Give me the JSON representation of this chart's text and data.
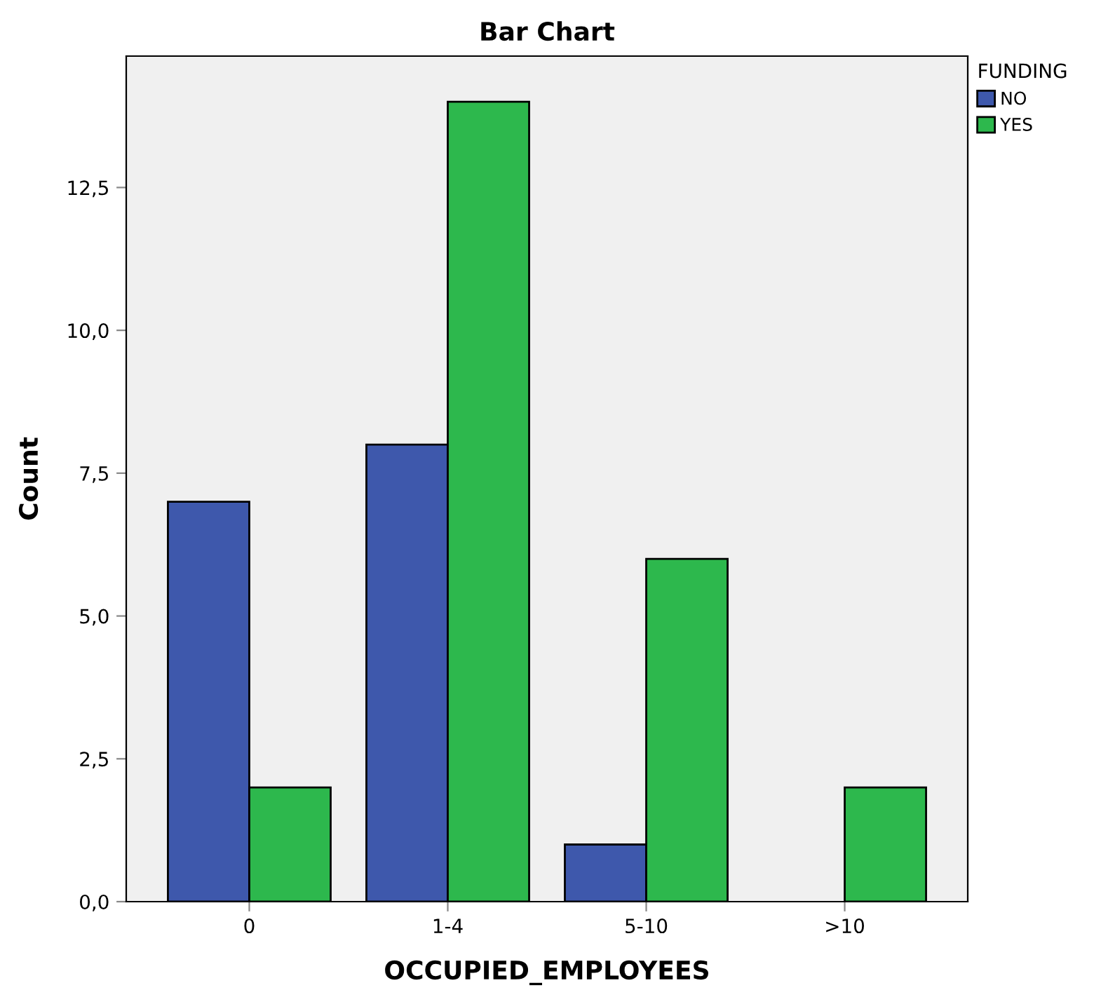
{
  "chart_data": {
    "type": "bar",
    "title": "Bar Chart",
    "xlabel": "OCCUPIED_EMPLOYEES",
    "ylabel": "Count",
    "legend_title": "FUNDING",
    "categories": [
      "0",
      "1-4",
      "5-10",
      ">10"
    ],
    "series": [
      {
        "name": "NO",
        "color": "#3e58ac",
        "values": [
          7,
          8,
          1,
          null
        ]
      },
      {
        "name": "YES",
        "color": "#2db84d",
        "values": [
          2,
          14,
          6,
          2
        ]
      }
    ],
    "ylim": [
      0,
      14.8
    ],
    "yticks": [
      {
        "value": 0,
        "label": "0,0"
      },
      {
        "value": 2.5,
        "label": "2,5"
      },
      {
        "value": 5,
        "label": "5,0"
      },
      {
        "value": 7.5,
        "label": "7,5"
      },
      {
        "value": 10,
        "label": "10,0"
      },
      {
        "value": 12.5,
        "label": "12,5"
      }
    ],
    "grid": false,
    "legend": "top right"
  }
}
